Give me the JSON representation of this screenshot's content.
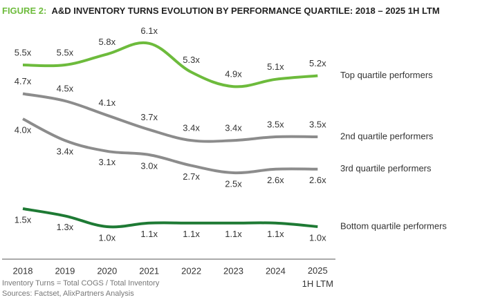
{
  "chart_data": {
    "type": "line",
    "title_label": "FIGURE 2:",
    "title": "A&D INVENTORY TURNS  EVOLUTION BY PERFORMANCE QUARTILE: 2018 – 2025 1H LTM",
    "categories": [
      "2018",
      "2019",
      "2020",
      "2021",
      "2022",
      "2023",
      "2024",
      "2025\n1H LTM"
    ],
    "ylim": [
      0.5,
      6.5
    ],
    "series": [
      {
        "name": "Top quartile performers",
        "color": "#6dbb3c",
        "values": [
          5.5,
          5.5,
          5.8,
          6.1,
          5.3,
          4.9,
          5.1,
          5.2
        ],
        "value_labels": [
          "5.5x",
          "5.5x",
          "5.8x",
          "6.1x",
          "5.3x",
          "4.9x",
          "5.1x",
          "5.2x"
        ]
      },
      {
        "name": "2nd quartile performers",
        "color": "#8c8c8c",
        "values": [
          4.7,
          4.5,
          4.1,
          3.7,
          3.4,
          3.4,
          3.5,
          3.5
        ],
        "value_labels": [
          "4.7x",
          "4.5x",
          "4.1x",
          "3.7x",
          "3.4x",
          "3.4x",
          "3.5x",
          "3.5x"
        ]
      },
      {
        "name": "3rd quartile performers",
        "color": "#8c8c8c",
        "values": [
          4.0,
          3.4,
          3.1,
          3.0,
          2.7,
          2.5,
          2.6,
          2.6
        ],
        "value_labels": [
          "4.0x",
          "3.4x",
          "3.1x",
          "3.0x",
          "2.7x",
          "2.5x",
          "2.6x",
          "2.6x"
        ]
      },
      {
        "name": "Bottom quartile performers",
        "color": "#1e7a34",
        "values": [
          1.5,
          1.3,
          1.0,
          1.1,
          1.1,
          1.1,
          1.1,
          1.0
        ],
        "value_labels": [
          "1.5x",
          "1.3x",
          "1.0x",
          "1.1x",
          "1.1x",
          "1.1x",
          "1.1x",
          "1.0x"
        ]
      }
    ],
    "notes": [
      "Inventory Turns = Total COGS / Total Inventory",
      "Sources: Factset, AlixPartners Analysis"
    ]
  }
}
